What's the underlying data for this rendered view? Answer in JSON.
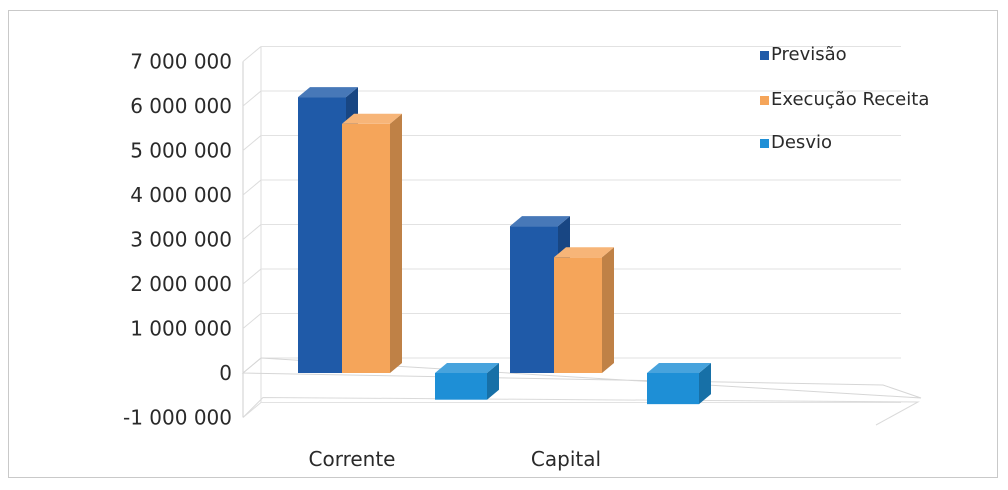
{
  "chart_data": {
    "type": "bar",
    "categories": [
      "Corrente",
      "Capital"
    ],
    "series": [
      {
        "name": "Previsão",
        "values": [
          6200000,
          3300000
        ],
        "color": "#1f5aa8"
      },
      {
        "name": "Execução Receita",
        "values": [
          5600000,
          2600000
        ],
        "color": "#f5a55a"
      },
      {
        "name": "Desvio",
        "values": [
          -600000,
          -700000
        ],
        "color": "#1e8fd6"
      }
    ],
    "yticks": [
      "7 000 000",
      "6 000 000",
      "5 000 000",
      "4 000 000",
      "3 000 000",
      "2 000 000",
      "1 000 000",
      "0",
      "-1 000 000"
    ],
    "ylim": [
      -1000000,
      7000000
    ],
    "grid": true,
    "legend_position": "top-right",
    "style": "3d-clustered-column"
  }
}
